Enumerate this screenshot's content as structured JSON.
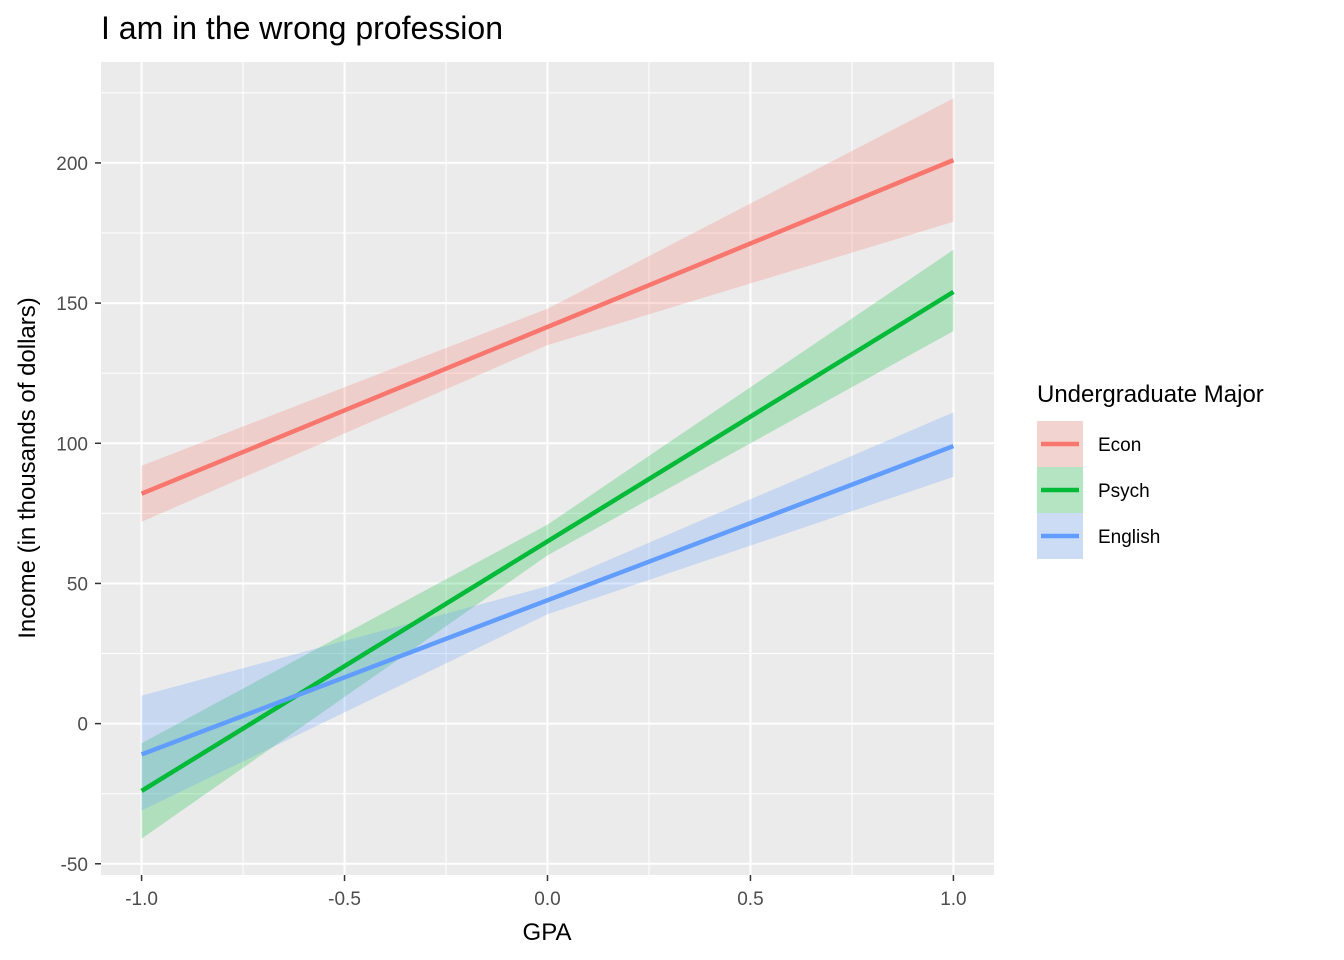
{
  "chart_data": {
    "type": "line",
    "title": "I am in the wrong profession",
    "xlabel": "GPA",
    "ylabel": "Income (in thousands of dollars)",
    "xlim": [
      -1.1,
      1.1
    ],
    "ylim": [
      -54,
      236
    ],
    "x_ticks": [
      -1.0,
      -0.5,
      0.0,
      0.5,
      1.0
    ],
    "x_tick_labels": [
      "-1.0",
      "-0.5",
      "0.0",
      "0.5",
      "1.0"
    ],
    "y_ticks": [
      -50,
      0,
      50,
      100,
      150,
      200
    ],
    "y_tick_labels": [
      "-50",
      "0",
      "50",
      "100",
      "150",
      "200"
    ],
    "grid": true,
    "legend": {
      "title": "Undergraduate Major",
      "placement": "right"
    },
    "series": [
      {
        "name": "Econ",
        "color": "#F8766D",
        "x": [
          -1.0,
          1.0
        ],
        "y": [
          82,
          201
        ],
        "ci_lower": [
          72,
          179
        ],
        "ci_upper": [
          92,
          223
        ],
        "ci_mid_x": 0.0,
        "ci_mid_lower": [
          135
        ],
        "ci_mid_upper": [
          148
        ]
      },
      {
        "name": "Psych",
        "color": "#00BA38",
        "x": [
          -1.0,
          1.0
        ],
        "y": [
          -24,
          154
        ],
        "ci_lower": [
          -41,
          140
        ],
        "ci_upper": [
          -7,
          169
        ],
        "ci_mid_x": 0.0,
        "ci_mid_lower": [
          60
        ],
        "ci_mid_upper": [
          71
        ]
      },
      {
        "name": "English",
        "color": "#619CFF",
        "x": [
          -1.0,
          1.0
        ],
        "y": [
          -11,
          99
        ],
        "ci_lower": [
          -31,
          88
        ],
        "ci_upper": [
          10,
          111
        ],
        "ci_mid_x": 0.0,
        "ci_mid_lower": [
          39
        ],
        "ci_mid_upper": [
          49
        ]
      }
    ]
  }
}
